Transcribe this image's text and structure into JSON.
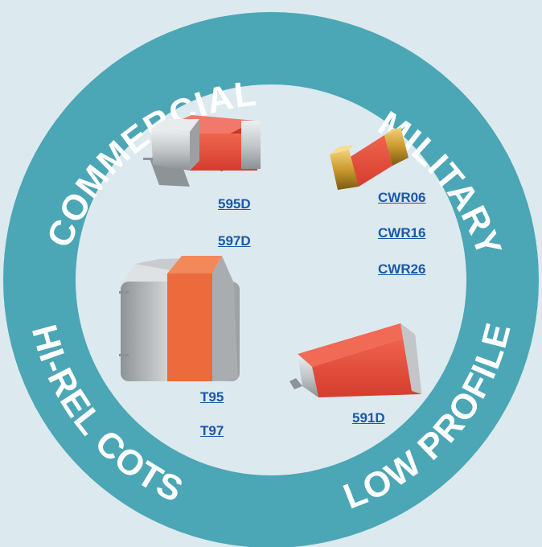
{
  "colors": {
    "background": "#dce9ef",
    "ring": "#4ba6b5",
    "inner": "#dce9ef",
    "ring_text": "#ffffff",
    "link": "#1b58a8",
    "capacitor_body": "#e84a3a",
    "capacitor_terminal": "#b9bcbe",
    "cwr_terminal": "#c99a2e"
  },
  "ring": {
    "commercial": "COMMERCIAL",
    "military": "MILITARY",
    "hirel": "HI-REL COTS",
    "lowprofile": "LOW PROFILE"
  },
  "links": {
    "commercial": [
      "595D",
      "597D"
    ],
    "military": [
      "CWR06",
      "CWR16",
      "CWR26"
    ],
    "hirel": [
      "T95",
      "T97"
    ],
    "lowprofile": [
      "591D"
    ]
  }
}
